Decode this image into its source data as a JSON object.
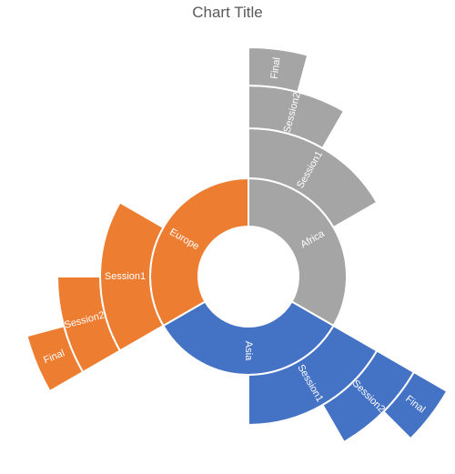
{
  "chart_data": {
    "type": "sunburst",
    "title": "Chart Title",
    "series": [
      {
        "name": "Africa",
        "color": "#a5a5a5",
        "children": [
          {
            "name": "Session1",
            "children": [
              {
                "name": "Session2",
                "children": [
                  {
                    "name": "Final"
                  }
                ]
              }
            ]
          }
        ]
      },
      {
        "name": "Asia",
        "color": "#4472c4",
        "children": [
          {
            "name": "Session1",
            "children": [
              {
                "name": "Session2",
                "children": [
                  {
                    "name": "Final"
                  }
                ]
              }
            ]
          }
        ]
      },
      {
        "name": "Europe",
        "color": "#ed7d31",
        "children": [
          {
            "name": "Session1",
            "children": [
              {
                "name": "Session2",
                "children": [
                  {
                    "name": "Final"
                  }
                ]
              }
            ]
          }
        ]
      }
    ]
  }
}
